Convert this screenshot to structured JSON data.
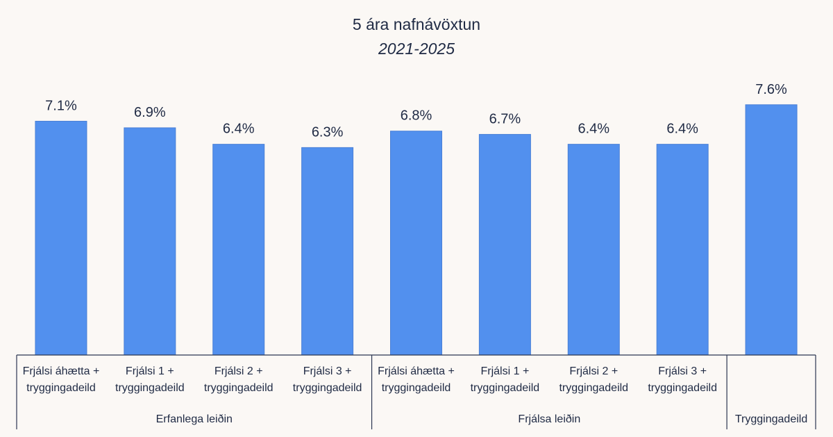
{
  "chart_data": {
    "type": "bar",
    "title": "5 ára nafnávöxtun",
    "subtitle": "2021-2025",
    "categories": [
      [
        "Frjálsi áhætta +",
        "tryggingadeild"
      ],
      [
        "Frjálsi 1 +",
        "tryggingadeild"
      ],
      [
        "Frjálsi 2 +",
        "tryggingadeild"
      ],
      [
        "Frjálsi 3 +",
        "tryggingadeild"
      ],
      [
        "Frjálsi áhætta +",
        "tryggingadeild"
      ],
      [
        "Frjálsi 1 +",
        "tryggingadeild"
      ],
      [
        "Frjálsi 2 +",
        "tryggingadeild"
      ],
      [
        "Frjálsi 3 +",
        "tryggingadeild"
      ],
      [
        ""
      ]
    ],
    "values": [
      7.1,
      6.9,
      6.4,
      6.3,
      6.8,
      6.7,
      6.4,
      6.4,
      7.6
    ],
    "value_labels": [
      "7.1%",
      "6.9%",
      "6.4%",
      "6.3%",
      "6.8%",
      "6.7%",
      "6.4%",
      "6.4%",
      "7.6%"
    ],
    "groups": [
      {
        "name": "Erfanlega leiðin",
        "start": 0,
        "end": 3
      },
      {
        "name": "Frjálsa leiðin",
        "start": 4,
        "end": 7
      },
      {
        "name": "Tryggingadeild",
        "start": 8,
        "end": 8
      }
    ],
    "ylim": [
      0,
      10
    ],
    "xlabel": "",
    "ylabel": "",
    "grid": false,
    "legend": "none",
    "colors": {
      "bar": "#5290ee",
      "text": "#1f2a44",
      "axis": "#2b3550"
    }
  }
}
